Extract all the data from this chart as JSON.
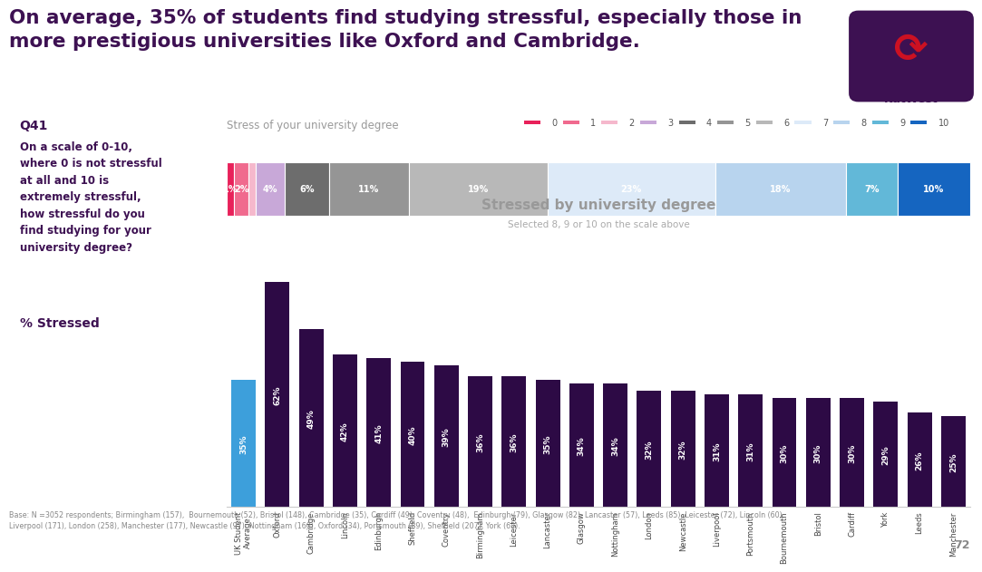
{
  "title_line1": "On average, 35% of students find studying stressful, especially those in",
  "title_line2": "more prestigious universities like Oxford and Cambridge.",
  "title_color": "#3d1152",
  "bg_color": "#ffffff",
  "q_label": "Q41",
  "question_text": "On a scale of 0-10,\nwhere 0 is not stressful\nat all and 10 is\nextremely stressful,\nhow stressful do you\nfind studying for your\nuniversity degree?",
  "pct_stressed_label": "% Stressed",
  "stacked_title": "Stress of your university degree",
  "stacked_values": [
    1,
    2,
    1,
    4,
    6,
    11,
    19,
    23,
    18,
    7,
    10
  ],
  "stacked_labels": [
    "1%",
    "2%",
    "",
    "4%",
    "6%",
    "11%",
    "19%",
    "23%",
    "18%",
    "7%",
    "10%"
  ],
  "stacked_colors": [
    "#e8215a",
    "#f06a8e",
    "#f5b8cc",
    "#c8a8d8",
    "#6d6d6d",
    "#959595",
    "#b8b8b8",
    "#ddeaf8",
    "#b8d4ee",
    "#62b8d8",
    "#1565c0"
  ],
  "legend_labels": [
    "0",
    "1",
    "2",
    "3",
    "4",
    "5",
    "6",
    "7",
    "8",
    "9",
    "10"
  ],
  "legend_colors": [
    "#e8215a",
    "#f06a8e",
    "#f5b8cc",
    "#c8a8d8",
    "#6d6d6d",
    "#959595",
    "#b8b8b8",
    "#ddeaf8",
    "#b8d4ee",
    "#62b8d8",
    "#1565c0"
  ],
  "bar_title": "Stressed by university degree",
  "bar_subtitle": "Selected 8, 9 or 10 on the scale above",
  "bar_categories": [
    "UK Student\nAverage",
    "Oxford",
    "Cambridge",
    "Lincoln",
    "Edinburgh",
    "Sheffield",
    "Coventry",
    "Birmingham",
    "Leicester",
    "Lancaster",
    "Glasgow",
    "Nottingham",
    "London",
    "Newcastle",
    "Liverpool",
    "Portsmouth",
    "Bournemouth",
    "Bristol",
    "Cardiff",
    "York",
    "Leeds",
    "Manchester"
  ],
  "bar_values": [
    35,
    62,
    49,
    42,
    41,
    40,
    39,
    36,
    36,
    35,
    34,
    34,
    32,
    32,
    31,
    31,
    30,
    30,
    30,
    29,
    26,
    25
  ],
  "bar_colors": [
    "#3d9fdb",
    "#2d0a45",
    "#2d0a45",
    "#2d0a45",
    "#2d0a45",
    "#2d0a45",
    "#2d0a45",
    "#2d0a45",
    "#2d0a45",
    "#2d0a45",
    "#2d0a45",
    "#2d0a45",
    "#2d0a45",
    "#2d0a45",
    "#2d0a45",
    "#2d0a45",
    "#2d0a45",
    "#2d0a45",
    "#2d0a45",
    "#2d0a45",
    "#2d0a45",
    "#2d0a45"
  ],
  "footnote": "Base: N =3052 respondents; Birmingham (157),  Bournemouth (52), Bristol (148), Cambridge (35), Cardiff (49), Coventry (48),  Edinburgh (79), Glasgow (82), Lancaster (57), Leeds (85), Leicester (72), Lincoln (60),\nLiverpool (171), London (258), Manchester (177), Newcastle (97), Nottingham (160), Oxford (34), Portsmouth (89), Sheffield (207), York (63).",
  "page_num": "72"
}
